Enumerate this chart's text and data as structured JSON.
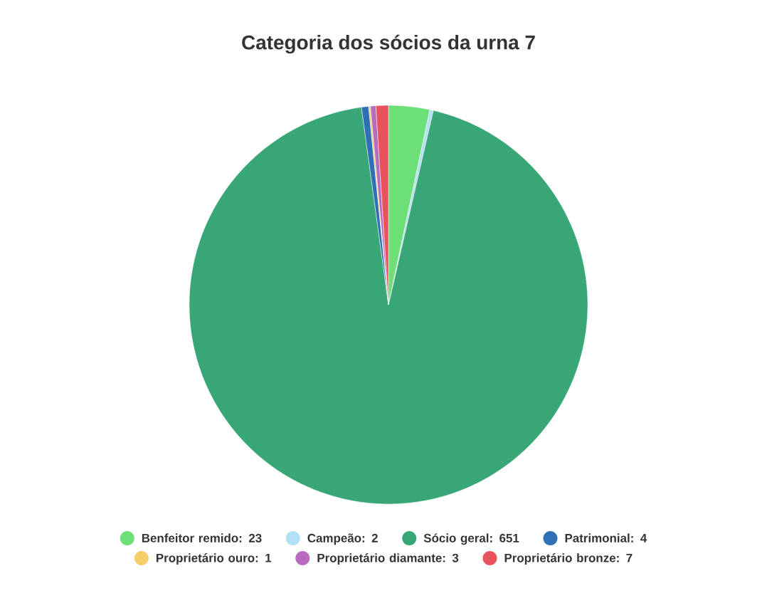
{
  "chart_data": {
    "type": "pie",
    "title": "Categoria dos sócios da urna 7",
    "categories": [
      "Benfeitor remido: 23",
      "Campeão: 2",
      "Sócio geral: 651",
      "Patrimonial: 4",
      "Proprietário ouro: 1",
      "Proprietário diamante: 3",
      "Proprietário bronze: 7"
    ],
    "values": [
      23,
      2,
      651,
      4,
      1,
      3,
      7
    ],
    "colors": [
      "#6ddf77",
      "#b3e0f2",
      "#39a677",
      "#2f6fb5",
      "#f5cd6b",
      "#b76bbf",
      "#e8525c"
    ],
    "legend": "bottom"
  }
}
